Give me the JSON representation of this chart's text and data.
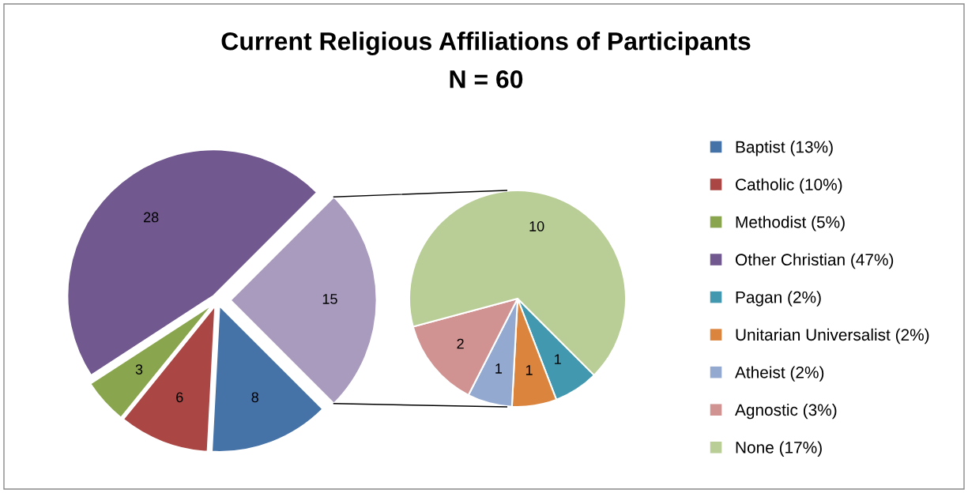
{
  "chart_data": [
    {
      "type": "pie",
      "title": "Current Religious Affiliations of Participants",
      "subtitle": "N = 60",
      "categories": [
        "Baptist (13%)",
        "Catholic (10%)",
        "Methodist (5%)",
        "Other Christian (47%)",
        null
      ],
      "values": [
        8,
        6,
        3,
        28,
        15
      ],
      "colors": [
        "#4572a7",
        "#aa4643",
        "#89a54e",
        "#71588f",
        "#a99bbd"
      ],
      "data_labels": true,
      "legend": "right"
    },
    {
      "type": "pie",
      "categories": [
        "Pagan (2%)",
        "Unitarian Universalist (2%)",
        "Atheist (2%)",
        "Agnostic (3%)",
        "None (17%)"
      ],
      "values": [
        1,
        1,
        1,
        2,
        10
      ],
      "colors": [
        "#4198af",
        "#db843d",
        "#93a9cf",
        "#d19392",
        "#b9cd96"
      ],
      "data_labels": true,
      "legend": "right"
    }
  ]
}
